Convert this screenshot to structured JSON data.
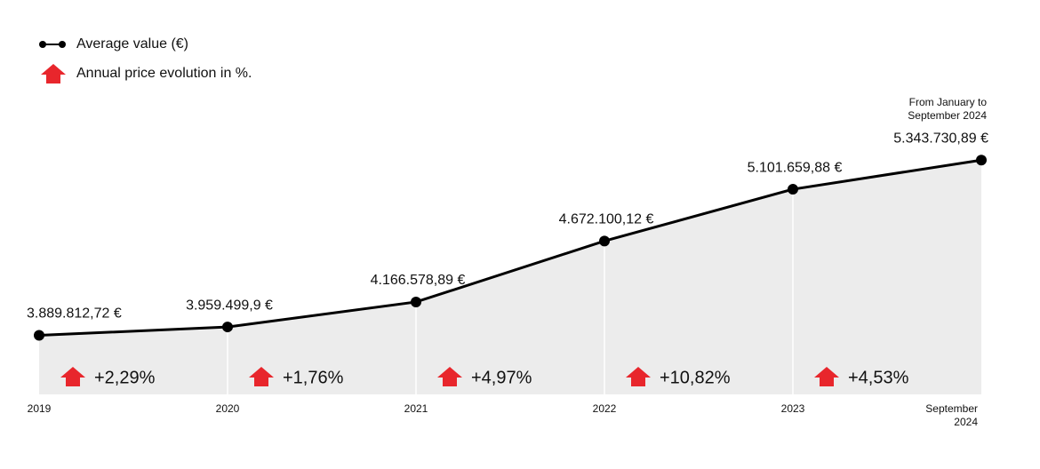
{
  "chart_data": {
    "type": "line",
    "categories": [
      "2019",
      "2020",
      "2021",
      "2022",
      "2023",
      "September 2024"
    ],
    "series": [
      {
        "name": "Average value (€)",
        "color": "#000000",
        "values": [
          3889812.72,
          3959499.9,
          4166578.89,
          4672100.12,
          5101659.88,
          5343730.89
        ],
        "value_labels": [
          "3.889.812,72 €",
          "3.959.499,9 €",
          "4.166.578,89 €",
          "4.672.100,12 €",
          "5.101.659,88 €",
          "5.343.730,89 €"
        ]
      }
    ],
    "evolution": {
      "name": "Annual price evolution in %.",
      "color": "#e8262c",
      "values": [
        2.29,
        1.76,
        4.97,
        10.82,
        4.53
      ],
      "value_labels": [
        "+2,29%",
        "+1,76%",
        "+4,97%",
        "+10,82%",
        "+4,53%"
      ]
    },
    "note": "From January to September 2024",
    "ylim": [
      3400000,
      5500000
    ],
    "area_color": "#ececec"
  }
}
